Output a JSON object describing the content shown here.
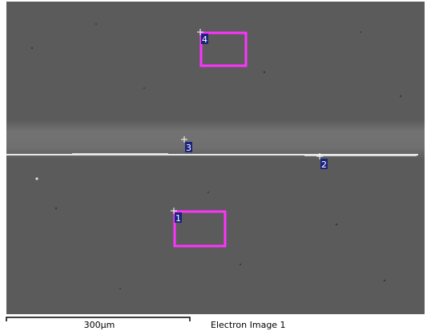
{
  "image": {
    "markers": [
      {
        "label": "1"
      },
      {
        "label": "2"
      },
      {
        "label": "3"
      },
      {
        "label": "4"
      }
    ]
  },
  "footer": {
    "scale_bar": "300µm",
    "caption": "Electron Image 1"
  }
}
